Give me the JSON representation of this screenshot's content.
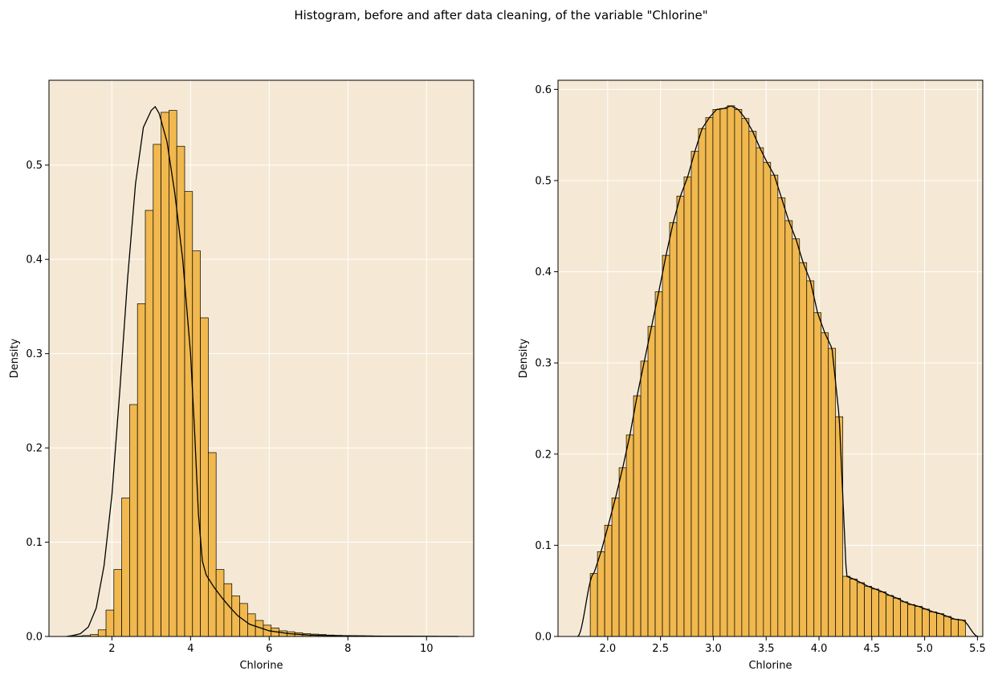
{
  "figure": {
    "suptitle": "Histogram, before and after data cleaning, of the variable \"Chlorine\""
  },
  "colors": {
    "plot_background": "#f5e9d5",
    "bar_fill": "#f0b84e",
    "bar_edge": "#000000",
    "kde_line": "#000000",
    "grid": "#ffffff"
  },
  "chart_data": [
    {
      "type": "bar",
      "xlabel": "Chlorine",
      "ylabel": "Density",
      "xlim": [
        0.4,
        11.2
      ],
      "ylim": [
        0,
        0.59
      ],
      "xticks": [
        2,
        4,
        6,
        8,
        10
      ],
      "xtick_labels": [
        "2",
        "4",
        "6",
        "8",
        "10"
      ],
      "yticks": [
        0.0,
        0.1,
        0.2,
        0.3,
        0.4,
        0.5
      ],
      "ytick_labels": [
        "0.0",
        "0.1",
        "0.2",
        "0.3",
        "0.4",
        "0.5"
      ],
      "grid": true,
      "bin_start": 0.85,
      "bin_width": 0.2,
      "values": [
        0.0002,
        0.0005,
        0.001,
        0.002,
        0.007,
        0.028,
        0.071,
        0.147,
        0.246,
        0.353,
        0.452,
        0.522,
        0.556,
        0.558,
        0.52,
        0.472,
        0.409,
        0.338,
        0.195,
        0.071,
        0.056,
        0.043,
        0.035,
        0.024,
        0.017,
        0.012,
        0.009,
        0.006,
        0.005,
        0.004,
        0.003,
        0.0025,
        0.002,
        0.0015,
        0.0012,
        0.001,
        0.0009,
        0.0008,
        0.0007,
        0.0006,
        0.0005,
        0.0005,
        0.0004,
        0.0004,
        0.0003,
        0.0003,
        0.0003,
        0.0002,
        0.0002,
        0.0002
      ],
      "kde": {
        "x": [
          0.85,
          1.0,
          1.2,
          1.4,
          1.6,
          1.8,
          2.0,
          2.2,
          2.4,
          2.6,
          2.8,
          3.0,
          3.1,
          3.2,
          3.4,
          3.6,
          3.8,
          4.0,
          4.1,
          4.2,
          4.3,
          4.4,
          4.6,
          4.8,
          5.0,
          5.2,
          5.5,
          6.0,
          6.5,
          7.0,
          8.0,
          9.0,
          10.0,
          10.8
        ],
        "y": [
          0.0,
          0.001,
          0.003,
          0.01,
          0.03,
          0.075,
          0.15,
          0.26,
          0.38,
          0.48,
          0.54,
          0.558,
          0.562,
          0.555,
          0.525,
          0.47,
          0.4,
          0.3,
          0.22,
          0.13,
          0.08,
          0.065,
          0.052,
          0.041,
          0.031,
          0.022,
          0.013,
          0.006,
          0.003,
          0.0015,
          0.0005,
          0.0002,
          0.0001,
          0.0
        ]
      }
    },
    {
      "type": "bar",
      "xlabel": "Chlorine",
      "ylabel": "Density",
      "xlim": [
        1.53,
        5.55
      ],
      "ylim": [
        0,
        0.61
      ],
      "xticks": [
        2.0,
        2.5,
        3.0,
        3.5,
        4.0,
        4.5,
        5.0,
        5.5
      ],
      "xtick_labels": [
        "2.0",
        "2.5",
        "3.0",
        "3.5",
        "4.0",
        "4.5",
        "5.0",
        "5.5"
      ],
      "yticks": [
        0.0,
        0.1,
        0.2,
        0.3,
        0.4,
        0.5,
        0.6
      ],
      "ytick_labels": [
        "0.0",
        "0.1",
        "0.2",
        "0.3",
        "0.4",
        "0.5",
        "0.6"
      ],
      "grid": true,
      "bin_start": 1.835,
      "bin_width": 0.0683,
      "values": [
        0.069,
        0.093,
        0.122,
        0.152,
        0.185,
        0.221,
        0.264,
        0.302,
        0.34,
        0.378,
        0.418,
        0.454,
        0.483,
        0.504,
        0.532,
        0.557,
        0.569,
        0.578,
        0.579,
        0.582,
        0.578,
        0.568,
        0.554,
        0.536,
        0.52,
        0.506,
        0.481,
        0.456,
        0.436,
        0.41,
        0.39,
        0.355,
        0.333,
        0.316,
        0.241,
        0.066,
        0.063,
        0.059,
        0.055,
        0.052,
        0.049,
        0.045,
        0.042,
        0.038,
        0.035,
        0.033,
        0.03,
        0.027,
        0.025,
        0.022,
        0.019,
        0.018
      ]
    }
  ]
}
